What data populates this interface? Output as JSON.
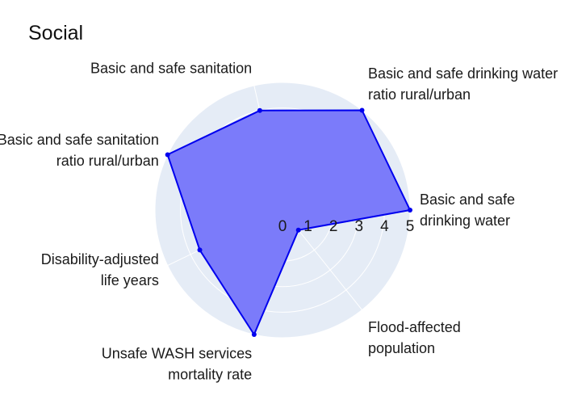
{
  "chart_data": {
    "type": "radar",
    "title": "Social",
    "categories": [
      "Basic and safe drinking water",
      "Basic and safe drinking water ratio rural/urban",
      "Basic and safe sanitation",
      "Basic and safe sanitation ratio rural/urban",
      "Disability-adjusted life years",
      "Unsafe WASH services mortality rate",
      "Flood-affected population"
    ],
    "category_lines": [
      [
        "Basic and safe",
        "drinking water"
      ],
      [
        "Basic and safe drinking water",
        "ratio rural/urban"
      ],
      [
        "Basic and safe sanitation"
      ],
      [
        "Basic and safe sanitation",
        "ratio rural/urban"
      ],
      [
        "Disability-adjusted",
        "life years"
      ],
      [
        "Unsafe WASH services",
        "mortality rate"
      ],
      [
        "Flood-affected",
        "population"
      ]
    ],
    "values": [
      5,
      5,
      4,
      5,
      3.6,
      5,
      1
    ],
    "radial_range": [
      0,
      5
    ],
    "radial_ticks": [
      "0",
      "1",
      "2",
      "3",
      "4",
      "5"
    ],
    "fill_color": "#7b7bfa",
    "line_color": "#0000ee",
    "background_color": "#e5ecf6",
    "grid": true,
    "legend": false
  }
}
